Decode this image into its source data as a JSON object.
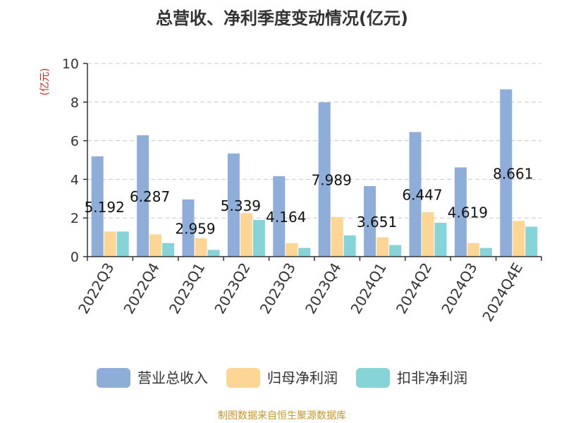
{
  "chart_data": {
    "type": "bar",
    "title": "总营收、净利季度变动情况(亿元)",
    "ylabel": "(亿元)",
    "xlabel": "",
    "ylim": [
      0,
      10
    ],
    "yticks": [
      0,
      2,
      4,
      6,
      8,
      10
    ],
    "grid": true,
    "legend_position": "bottom",
    "categories": [
      "2022Q3",
      "2022Q4",
      "2023Q1",
      "2023Q2",
      "2023Q3",
      "2023Q4",
      "2024Q1",
      "2024Q2",
      "2024Q3",
      "2024Q4E"
    ],
    "series": [
      {
        "name": "营业总收入",
        "color": "#8eadd9",
        "values": [
          5.192,
          6.287,
          2.959,
          5.339,
          4.164,
          7.989,
          3.651,
          6.447,
          4.619,
          8.661
        ]
      },
      {
        "name": "归母净利润",
        "color": "#fdd594",
        "values": [
          1.3,
          1.15,
          0.95,
          2.25,
          0.7,
          2.05,
          1.0,
          2.3,
          0.7,
          1.85
        ]
      },
      {
        "name": "扣非净利润",
        "color": "#86d3d8",
        "values": [
          1.3,
          0.7,
          0.35,
          1.9,
          0.45,
          1.1,
          0.6,
          1.75,
          0.45,
          1.55
        ]
      }
    ],
    "data_labels": [
      "5.192",
      "6.287",
      "2.959",
      "5.339",
      "4.164",
      "7.989",
      "3.651",
      "6.447",
      "4.619",
      "8.661"
    ]
  },
  "footer": {
    "source": "制图数据来自恒生聚源数据库"
  }
}
